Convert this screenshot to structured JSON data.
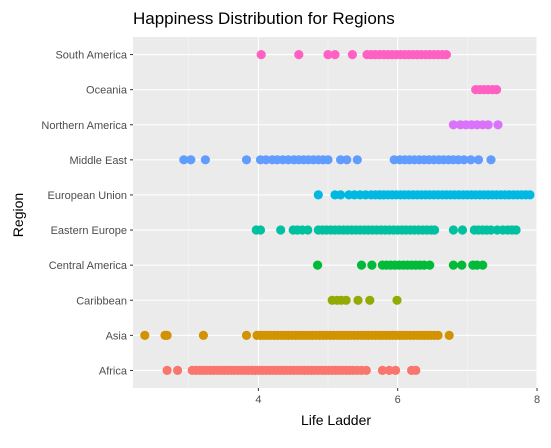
{
  "chart_data": {
    "type": "scatter",
    "title": "Happiness Distribution for Regions",
    "xlabel": "Life Ladder",
    "ylabel": "Region",
    "xlim": [
      2.2,
      8.0
    ],
    "x_ticks": [
      4,
      6,
      8
    ],
    "categories": [
      "Africa",
      "Asia",
      "Caribbean",
      "Central America",
      "Eastern Europe",
      "European Union",
      "Middle East",
      "Northern America",
      "Oceania",
      "South America"
    ],
    "grid": true,
    "legend": "none",
    "panel_background": "#ebebeb",
    "series": [
      {
        "category": "Africa",
        "color": "#F8766D",
        "x": [
          2.69,
          2.84,
          3.05,
          3.1,
          3.16,
          3.21,
          3.26,
          3.31,
          3.36,
          3.41,
          3.46,
          3.51,
          3.56,
          3.61,
          3.66,
          3.71,
          3.76,
          3.81,
          3.86,
          3.91,
          3.96,
          4.01,
          4.06,
          4.11,
          4.16,
          4.21,
          4.26,
          4.31,
          4.36,
          4.41,
          4.46,
          4.51,
          4.56,
          4.61,
          4.66,
          4.71,
          4.76,
          4.81,
          4.86,
          4.91,
          4.96,
          5.01,
          5.06,
          5.11,
          5.16,
          5.21,
          5.26,
          5.31,
          5.36,
          5.42,
          5.48,
          5.55,
          5.78,
          5.88,
          5.97,
          6.2,
          6.26
        ]
      },
      {
        "category": "Asia",
        "color": "#D39200",
        "x": [
          2.37,
          2.66,
          2.69,
          3.21,
          3.83,
          3.98,
          4.03,
          4.08,
          4.13,
          4.18,
          4.23,
          4.28,
          4.33,
          4.38,
          4.43,
          4.48,
          4.53,
          4.58,
          4.63,
          4.68,
          4.73,
          4.78,
          4.83,
          4.88,
          4.93,
          4.98,
          5.03,
          5.08,
          5.13,
          5.18,
          5.23,
          5.28,
          5.33,
          5.38,
          5.43,
          5.48,
          5.53,
          5.58,
          5.63,
          5.68,
          5.73,
          5.78,
          5.83,
          5.88,
          5.93,
          5.98,
          6.03,
          6.08,
          6.13,
          6.18,
          6.23,
          6.28,
          6.33,
          6.38,
          6.43,
          6.48,
          6.53,
          6.58,
          6.74
        ]
      },
      {
        "category": "Caribbean",
        "color": "#93AA00",
        "x": [
          5.06,
          5.13,
          5.19,
          5.26,
          5.43,
          5.6,
          5.99
        ]
      },
      {
        "category": "Central America",
        "color": "#00BA38",
        "x": [
          4.85,
          5.48,
          5.63,
          5.78,
          5.84,
          5.9,
          5.96,
          6.02,
          6.08,
          6.14,
          6.2,
          6.26,
          6.32,
          6.38,
          6.46,
          6.8,
          6.92,
          7.08,
          7.14,
          7.22
        ]
      },
      {
        "category": "Eastern Europe",
        "color": "#00C19F",
        "x": [
          3.97,
          4.03,
          4.32,
          4.5,
          4.56,
          4.63,
          4.71,
          4.86,
          4.92,
          4.98,
          5.04,
          5.1,
          5.16,
          5.22,
          5.28,
          5.34,
          5.4,
          5.46,
          5.52,
          5.58,
          5.64,
          5.7,
          5.76,
          5.82,
          5.88,
          5.94,
          6.0,
          6.06,
          6.12,
          6.18,
          6.24,
          6.3,
          6.36,
          6.42,
          6.48,
          6.53,
          6.8,
          6.93,
          7.1,
          7.16,
          7.22,
          7.28,
          7.34,
          7.43,
          7.51,
          7.58,
          7.64,
          7.7
        ]
      },
      {
        "category": "European Union",
        "color": "#00B9E3",
        "x": [
          4.86,
          5.1,
          5.18,
          5.3,
          5.38,
          5.46,
          5.54,
          5.62,
          5.68,
          5.74,
          5.8,
          5.86,
          5.92,
          5.98,
          6.04,
          6.1,
          6.16,
          6.22,
          6.28,
          6.34,
          6.4,
          6.46,
          6.52,
          6.58,
          6.64,
          6.7,
          6.76,
          6.82,
          6.88,
          6.94,
          7.0,
          7.06,
          7.12,
          7.18,
          7.24,
          7.3,
          7.36,
          7.42,
          7.48,
          7.54,
          7.6,
          7.66,
          7.72,
          7.78,
          7.84,
          7.9
        ]
      },
      {
        "category": "Middle East",
        "color": "#619CFF",
        "x": [
          2.93,
          3.03,
          3.24,
          3.83,
          4.03,
          4.11,
          4.2,
          4.27,
          4.35,
          4.43,
          4.51,
          4.58,
          4.65,
          4.72,
          4.79,
          4.86,
          4.93,
          5.0,
          5.18,
          5.27,
          5.42,
          5.95,
          6.03,
          6.1,
          6.17,
          6.24,
          6.31,
          6.38,
          6.45,
          6.52,
          6.59,
          6.66,
          6.73,
          6.8,
          6.87,
          6.95,
          7.05,
          7.16,
          7.34
        ]
      },
      {
        "category": "Northern America",
        "color": "#DB72FB",
        "x": [
          6.8,
          6.9,
          6.98,
          7.06,
          7.14,
          7.22,
          7.3,
          7.44
        ]
      },
      {
        "category": "Oceania",
        "color": "#FF61C3",
        "x": [
          7.12,
          7.18,
          7.24,
          7.3,
          7.36,
          7.42
        ]
      },
      {
        "category": "South America",
        "color": "#FF61C3",
        "x": [
          4.04,
          4.58,
          5.0,
          5.1,
          5.35,
          5.56,
          5.62,
          5.68,
          5.74,
          5.8,
          5.86,
          5.92,
          5.98,
          6.04,
          6.1,
          6.16,
          6.22,
          6.28,
          6.34,
          6.4,
          6.46,
          6.52,
          6.58,
          6.64,
          6.7
        ]
      }
    ]
  }
}
